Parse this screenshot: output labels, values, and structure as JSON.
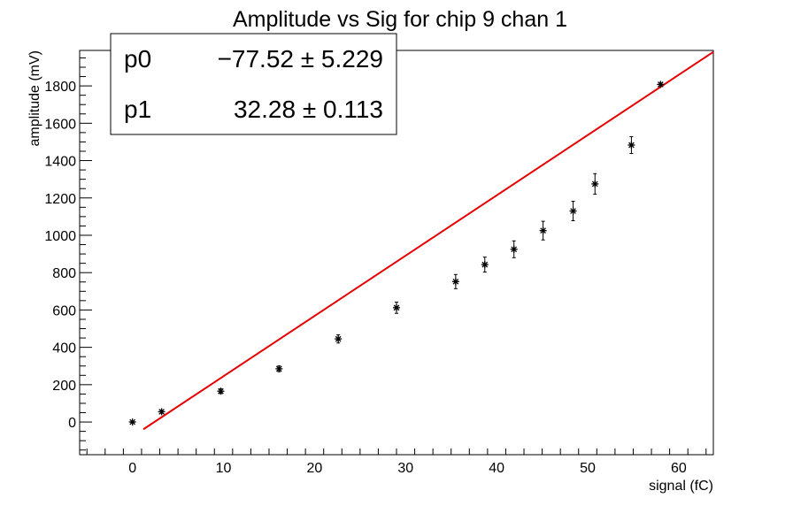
{
  "chart_data": {
    "type": "scatter",
    "title": "Amplitude vs Sig for chip 9 chan 1",
    "xlabel": "signal (fC)",
    "ylabel": "amplitude (mV)",
    "xlim": [
      -5.8,
      63.8
    ],
    "ylim": [
      -175,
      1990
    ],
    "x_ticks": [
      0,
      10,
      20,
      30,
      40,
      50,
      60
    ],
    "y_ticks": [
      0,
      200,
      400,
      600,
      800,
      1000,
      1200,
      1400,
      1600,
      1800
    ],
    "grid": false,
    "legend": "none",
    "series": [
      {
        "marker": "star",
        "color": "#000000",
        "points": [
          {
            "x": 0.0,
            "y": 0,
            "err": 5
          },
          {
            "x": 3.2,
            "y": 55,
            "err": 8
          },
          {
            "x": 9.7,
            "y": 165,
            "err": 12
          },
          {
            "x": 16.1,
            "y": 285,
            "err": 15
          },
          {
            "x": 22.6,
            "y": 445,
            "err": 22
          },
          {
            "x": 29.0,
            "y": 612,
            "err": 30
          },
          {
            "x": 35.5,
            "y": 752,
            "err": 38
          },
          {
            "x": 38.7,
            "y": 843,
            "err": 40
          },
          {
            "x": 41.9,
            "y": 925,
            "err": 45
          },
          {
            "x": 45.1,
            "y": 1025,
            "err": 50
          },
          {
            "x": 48.4,
            "y": 1130,
            "err": 52
          },
          {
            "x": 50.8,
            "y": 1275,
            "err": 55
          },
          {
            "x": 54.8,
            "y": 1483,
            "err": 45
          },
          {
            "x": 58.0,
            "y": 1808,
            "err": 8
          }
        ]
      }
    ],
    "fit": {
      "color": "#e60000",
      "x_range": [
        1.2,
        63.8
      ],
      "params": [
        {
          "name": "p0",
          "value": "−77.52",
          "pm": "±",
          "error": "5.229",
          "num": -77.52
        },
        {
          "name": "p1",
          "value": "32.28",
          "pm": "±",
          "error": "0.113",
          "num": 32.28
        }
      ]
    }
  }
}
